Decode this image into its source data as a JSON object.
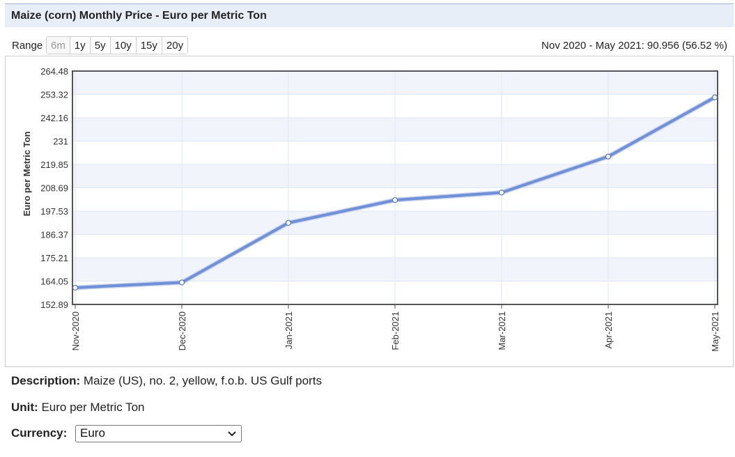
{
  "header": {
    "title": "Maize (corn) Monthly Price - Euro per Metric Ton"
  },
  "range": {
    "label": "Range",
    "options": [
      "6m",
      "1y",
      "5y",
      "10y",
      "15y",
      "20y"
    ],
    "active": "6m",
    "summary": "Nov 2020 - May 2021: 90.956 (56.52 %)"
  },
  "chart_data": {
    "type": "line",
    "title": "",
    "xlabel": "",
    "ylabel": "Euro per Metric Ton",
    "categories": [
      "Nov-2020",
      "Dec-2020",
      "Jan-2021",
      "Feb-2021",
      "Mar-2021",
      "Apr-2021",
      "May-2021"
    ],
    "series": [
      {
        "values": [
          160.9,
          163.4,
          191.9,
          202.8,
          206.4,
          223.6,
          251.9
        ]
      }
    ],
    "yticks": [
      "152.89",
      "164.05",
      "175.21",
      "186.37",
      "197.53",
      "208.69",
      "219.85",
      "231",
      "242.16",
      "253.32",
      "264.48"
    ],
    "ylim": [
      152.89,
      264.48
    ],
    "grid": true,
    "colors": {
      "line": "#6f8fd6",
      "band": "#f2f4fb",
      "grid": "#dde6f5",
      "frame": "#555555"
    }
  },
  "details": {
    "description_label": "Description:",
    "description": "Maize (US), no. 2, yellow, f.o.b. US Gulf ports",
    "unit_label": "Unit:",
    "unit": "Euro per Metric Ton",
    "currency_label": "Currency:",
    "currency_selected": "Euro"
  }
}
